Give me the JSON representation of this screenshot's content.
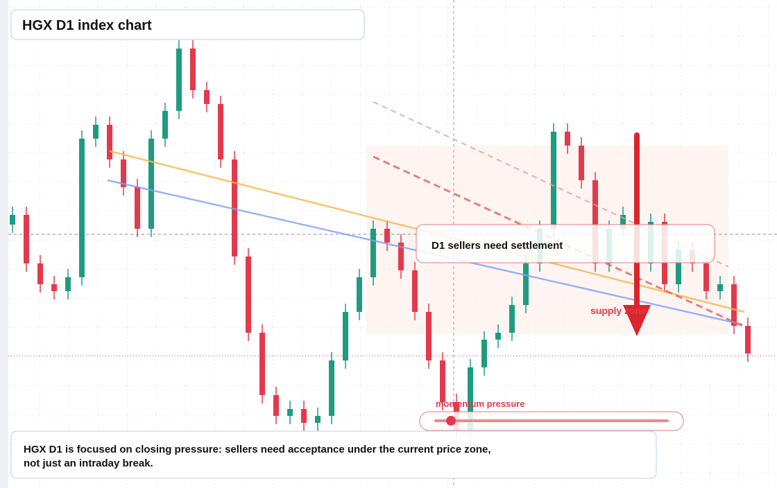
{
  "chart_data": {
    "type": "candlestick",
    "title": "HGX D1 index chart",
    "up_color": "#1e9c80",
    "down_color": "#e23a4c",
    "ylim": [
      0,
      704
    ],
    "open": [
      380,
      394,
      324,
      294,
      284,
      304,
      504,
      524,
      474,
      434,
      374,
      504,
      544,
      634,
      574,
      554,
      474,
      334,
      224,
      134,
      104,
      114,
      94,
      104,
      184,
      254,
      304,
      374,
      354,
      314,
      254,
      184,
      124,
      84,
      174,
      214,
      224,
      264,
      324,
      374,
      514,
      494,
      444,
      324,
      374,
      394,
      324,
      384,
      294,
      344,
      324,
      284,
      294,
      234
    ],
    "high": [
      406,
      406,
      336,
      306,
      316,
      516,
      536,
      536,
      486,
      446,
      516,
      556,
      646,
      646,
      586,
      566,
      486,
      346,
      236,
      146,
      126,
      126,
      116,
      196,
      266,
      316,
      386,
      386,
      366,
      326,
      266,
      196,
      136,
      186,
      226,
      236,
      276,
      336,
      386,
      526,
      526,
      506,
      456,
      386,
      406,
      406,
      396,
      396,
      356,
      356,
      336,
      306,
      306,
      246
    ],
    "low": [
      368,
      312,
      282,
      272,
      272,
      292,
      492,
      462,
      422,
      362,
      362,
      492,
      532,
      562,
      542,
      462,
      322,
      212,
      122,
      92,
      92,
      82,
      82,
      92,
      172,
      242,
      292,
      342,
      302,
      242,
      172,
      112,
      72,
      72,
      162,
      202,
      212,
      252,
      312,
      362,
      482,
      432,
      312,
      312,
      362,
      312,
      312,
      282,
      282,
      312,
      272,
      272,
      222,
      182
    ],
    "close": [
      394,
      324,
      294,
      284,
      304,
      504,
      524,
      474,
      434,
      374,
      504,
      544,
      634,
      574,
      554,
      474,
      334,
      224,
      134,
      104,
      114,
      94,
      104,
      184,
      254,
      304,
      374,
      354,
      314,
      254,
      184,
      124,
      84,
      174,
      214,
      224,
      264,
      324,
      374,
      514,
      494,
      444,
      324,
      374,
      394,
      324,
      384,
      294,
      344,
      324,
      284,
      294,
      234,
      194
    ],
    "callout": "D1 sellers need settlement",
    "zone_label": "supply zone",
    "slider_label": "momentum pressure",
    "note": [
      "HGX D1 is focused on closing pressure: sellers need acceptance under the current price zone,",
      "not just an intraday break."
    ]
  }
}
